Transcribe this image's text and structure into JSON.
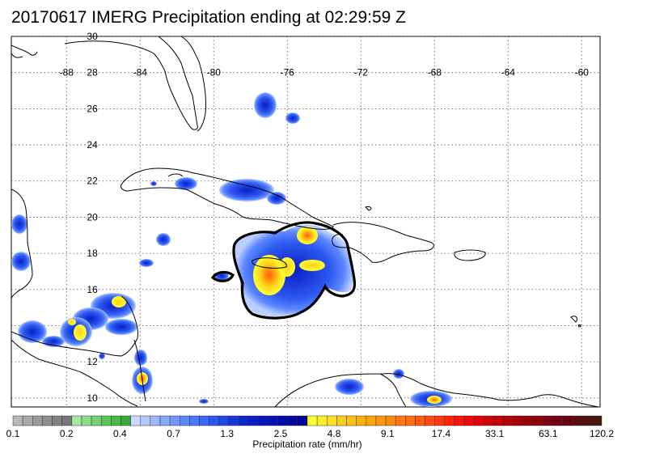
{
  "title": "20170617 IMERG Precipitation ending at 02:29:59 Z",
  "map": {
    "lon_range": [
      -91,
      -59
    ],
    "lat_range": [
      9.5,
      30
    ],
    "lon_ticks": [
      -88,
      -84,
      -80,
      -76,
      -72,
      -68,
      -64,
      -60
    ],
    "lat_ticks": [
      10,
      12,
      14,
      16,
      18,
      20,
      22,
      24,
      26,
      28,
      30
    ],
    "lat_tick_labels": [
      "10",
      "12",
      "",
      "16",
      "18",
      "20",
      "22",
      "24",
      "26",
      "28",
      "30"
    ],
    "grid": true,
    "grid_style": "dotted",
    "coastline_color": "#000000",
    "contour_color": "#000000"
  },
  "colorbar": {
    "label": "Precipitation rate (mm/hr)",
    "tick_labels": [
      "0.1",
      "0.2",
      "0.4",
      "0.7",
      "1.3",
      "2.5",
      "4.8",
      "9.1",
      "17.4",
      "33.1",
      "63.1",
      "120.2"
    ],
    "colors": [
      "#b7b7b7",
      "#a9a9a9",
      "#9c9c9c",
      "#8f8f8f",
      "#828282",
      "#777777",
      "#a6e8a0",
      "#8edc88",
      "#76d070",
      "#5ec458",
      "#48b846",
      "#39a83a",
      "#c8d8ff",
      "#b2c8ff",
      "#9cb8ff",
      "#86a8ff",
      "#7098ff",
      "#5c88ff",
      "#4a78ff",
      "#3a68f8",
      "#2c58f0",
      "#2048e6",
      "#1638dc",
      "#0e28d0",
      "#0a1ec8",
      "#0816c0",
      "#0610b6",
      "#040cac",
      "#0008a2",
      "#000098",
      "#ffff33",
      "#fff02a",
      "#ffe022",
      "#ffd01a",
      "#ffc012",
      "#ffb00a",
      "#ffa40a",
      "#ff960c",
      "#ff880e",
      "#ff7a10",
      "#ff6c10",
      "#ff5c10",
      "#ff4a10",
      "#ff380e",
      "#ff260c",
      "#f8140a",
      "#ee0808",
      "#e00006",
      "#d00006",
      "#c20006",
      "#b40006",
      "#a60008",
      "#98000a",
      "#8c000c",
      "#7e000e",
      "#700010",
      "#640012",
      "#5a0c10",
      "#501410",
      "#461810"
    ]
  }
}
